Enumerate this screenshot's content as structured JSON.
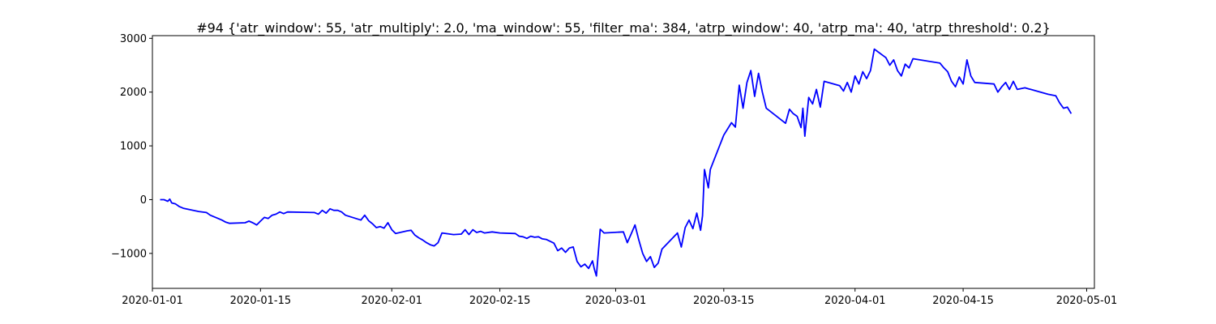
{
  "chart_data": {
    "type": "line",
    "title": "#94 {'atr_window': 55, 'atr_multiply': 2.0, 'ma_window': 55, 'filter_ma': 384, 'atrp_window': 40, 'atrp_ma': 40, 'atrp_threshold': 0.2}",
    "xlabel": "",
    "ylabel": "",
    "x_type": "date",
    "xlim": [
      "2020-01-01",
      "2020-05-02"
    ],
    "ylim": [
      -1650,
      3050
    ],
    "x_ticks": [
      "2020-01-01",
      "2020-01-15",
      "2020-02-01",
      "2020-02-15",
      "2020-03-01",
      "2020-03-15",
      "2020-04-01",
      "2020-04-15",
      "2020-05-01"
    ],
    "y_ticks": [
      -1000,
      0,
      1000,
      2000,
      3000
    ],
    "y_tick_labels": [
      "−1000",
      "0",
      "1000",
      "2000",
      "3000"
    ],
    "grid": false,
    "legend": "none",
    "series": [
      {
        "color": "#0000ff",
        "points": [
          [
            "2020-01-02",
            0
          ],
          [
            "2020-01-02 12:00",
            0
          ],
          [
            "2020-01-03",
            -30
          ],
          [
            "2020-01-03 06:00",
            10
          ],
          [
            "2020-01-03 12:00",
            -60
          ],
          [
            "2020-01-04",
            -80
          ],
          [
            "2020-01-04 12:00",
            -130
          ],
          [
            "2020-01-05",
            -160
          ],
          [
            "2020-01-07",
            -220
          ],
          [
            "2020-01-08",
            -240
          ],
          [
            "2020-01-08 12:00",
            -290
          ],
          [
            "2020-01-09",
            -320
          ],
          [
            "2020-01-09 12:00",
            -350
          ],
          [
            "2020-01-10",
            -380
          ],
          [
            "2020-01-10 12:00",
            -420
          ],
          [
            "2020-01-11",
            -440
          ],
          [
            "2020-01-13",
            -430
          ],
          [
            "2020-01-13 12:00",
            -400
          ],
          [
            "2020-01-14",
            -430
          ],
          [
            "2020-01-14 12:00",
            -470
          ],
          [
            "2020-01-15",
            -400
          ],
          [
            "2020-01-15 12:00",
            -330
          ],
          [
            "2020-01-16",
            -350
          ],
          [
            "2020-01-16 12:00",
            -290
          ],
          [
            "2020-01-17",
            -270
          ],
          [
            "2020-01-17 12:00",
            -230
          ],
          [
            "2020-01-18",
            -260
          ],
          [
            "2020-01-18 12:00",
            -230
          ],
          [
            "2020-01-22",
            -240
          ],
          [
            "2020-01-22 12:00",
            -270
          ],
          [
            "2020-01-23",
            -200
          ],
          [
            "2020-01-23 12:00",
            -250
          ],
          [
            "2020-01-24",
            -170
          ],
          [
            "2020-01-24 12:00",
            -200
          ],
          [
            "2020-01-25",
            -200
          ],
          [
            "2020-01-25 12:00",
            -230
          ],
          [
            "2020-01-26",
            -290
          ],
          [
            "2020-01-28",
            -380
          ],
          [
            "2020-01-28 12:00",
            -290
          ],
          [
            "2020-01-29",
            -390
          ],
          [
            "2020-01-29 12:00",
            -450
          ],
          [
            "2020-01-30",
            -520
          ],
          [
            "2020-01-30 12:00",
            -500
          ],
          [
            "2020-01-31",
            -530
          ],
          [
            "2020-01-31 12:00",
            -430
          ],
          [
            "2020-02-01",
            -560
          ],
          [
            "2020-02-01 12:00",
            -630
          ],
          [
            "2020-02-03",
            -580
          ],
          [
            "2020-02-03 12:00",
            -570
          ],
          [
            "2020-02-04",
            -660
          ],
          [
            "2020-02-04 12:00",
            -710
          ],
          [
            "2020-02-05",
            -750
          ],
          [
            "2020-02-05 12:00",
            -800
          ],
          [
            "2020-02-06",
            -840
          ],
          [
            "2020-02-06 12:00",
            -860
          ],
          [
            "2020-02-07",
            -800
          ],
          [
            "2020-02-07 12:00",
            -620
          ],
          [
            "2020-02-09",
            -650
          ],
          [
            "2020-02-10",
            -640
          ],
          [
            "2020-02-10 12:00",
            -560
          ],
          [
            "2020-02-11",
            -650
          ],
          [
            "2020-02-11 12:00",
            -560
          ],
          [
            "2020-02-12",
            -610
          ],
          [
            "2020-02-12 12:00",
            -590
          ],
          [
            "2020-02-13",
            -620
          ],
          [
            "2020-02-14",
            -600
          ],
          [
            "2020-02-15",
            -620
          ],
          [
            "2020-02-17",
            -630
          ],
          [
            "2020-02-17 12:00",
            -680
          ],
          [
            "2020-02-18",
            -690
          ],
          [
            "2020-02-18 12:00",
            -720
          ],
          [
            "2020-02-19",
            -680
          ],
          [
            "2020-02-19 12:00",
            -700
          ],
          [
            "2020-02-20",
            -690
          ],
          [
            "2020-02-20 12:00",
            -730
          ],
          [
            "2020-02-21",
            -740
          ],
          [
            "2020-02-22",
            -810
          ],
          [
            "2020-02-22 12:00",
            -950
          ],
          [
            "2020-02-23",
            -900
          ],
          [
            "2020-02-23 12:00",
            -980
          ],
          [
            "2020-02-24",
            -900
          ],
          [
            "2020-02-24 12:00",
            -880
          ],
          [
            "2020-02-25",
            -1150
          ],
          [
            "2020-02-25 12:00",
            -1250
          ],
          [
            "2020-02-26",
            -1200
          ],
          [
            "2020-02-26 12:00",
            -1280
          ],
          [
            "2020-02-27",
            -1140
          ],
          [
            "2020-02-27 06:00",
            -1300
          ],
          [
            "2020-02-27 12:00",
            -1420
          ],
          [
            "2020-02-28",
            -550
          ],
          [
            "2020-02-28 12:00",
            -620
          ],
          [
            "2020-03-02",
            -600
          ],
          [
            "2020-03-02 12:00",
            -800
          ],
          [
            "2020-03-03",
            -640
          ],
          [
            "2020-03-03 12:00",
            -470
          ],
          [
            "2020-03-04",
            -750
          ],
          [
            "2020-03-04 12:00",
            -1000
          ],
          [
            "2020-03-05",
            -1150
          ],
          [
            "2020-03-05 12:00",
            -1060
          ],
          [
            "2020-03-06",
            -1260
          ],
          [
            "2020-03-06 12:00",
            -1180
          ],
          [
            "2020-03-07",
            -920
          ],
          [
            "2020-03-09",
            -620
          ],
          [
            "2020-03-09 12:00",
            -880
          ],
          [
            "2020-03-10",
            -520
          ],
          [
            "2020-03-10 12:00",
            -380
          ],
          [
            "2020-03-11",
            -540
          ],
          [
            "2020-03-11 12:00",
            -250
          ],
          [
            "2020-03-12",
            -570
          ],
          [
            "2020-03-12 06:00",
            -300
          ],
          [
            "2020-03-12 12:00",
            560
          ],
          [
            "2020-03-13",
            220
          ],
          [
            "2020-03-13 06:00",
            560
          ],
          [
            "2020-03-13 12:00",
            650
          ],
          [
            "2020-03-15",
            1200
          ],
          [
            "2020-03-16",
            1430
          ],
          [
            "2020-03-16 12:00",
            1350
          ],
          [
            "2020-03-17",
            2130
          ],
          [
            "2020-03-17 12:00",
            1700
          ],
          [
            "2020-03-18",
            2180
          ],
          [
            "2020-03-18 12:00",
            2400
          ],
          [
            "2020-03-19",
            1920
          ],
          [
            "2020-03-19 12:00",
            2350
          ],
          [
            "2020-03-20",
            2000
          ],
          [
            "2020-03-20 12:00",
            1700
          ],
          [
            "2020-03-23",
            1420
          ],
          [
            "2020-03-23 12:00",
            1680
          ],
          [
            "2020-03-24",
            1600
          ],
          [
            "2020-03-24 12:00",
            1550
          ],
          [
            "2020-03-25",
            1340
          ],
          [
            "2020-03-25 06:00",
            1700
          ],
          [
            "2020-03-25 12:00",
            1180
          ],
          [
            "2020-03-26",
            1900
          ],
          [
            "2020-03-26 12:00",
            1780
          ],
          [
            "2020-03-27",
            2050
          ],
          [
            "2020-03-27 12:00",
            1720
          ],
          [
            "2020-03-28",
            2200
          ],
          [
            "2020-03-30",
            2120
          ],
          [
            "2020-03-30 12:00",
            2020
          ],
          [
            "2020-03-31",
            2180
          ],
          [
            "2020-03-31 12:00",
            2000
          ],
          [
            "2020-04-01",
            2300
          ],
          [
            "2020-04-01 12:00",
            2150
          ],
          [
            "2020-04-02",
            2380
          ],
          [
            "2020-04-02 12:00",
            2250
          ],
          [
            "2020-04-03",
            2400
          ],
          [
            "2020-04-03 12:00",
            2800
          ],
          [
            "2020-04-05",
            2640
          ],
          [
            "2020-04-05 12:00",
            2500
          ],
          [
            "2020-04-06",
            2600
          ],
          [
            "2020-04-06 12:00",
            2400
          ],
          [
            "2020-04-07",
            2300
          ],
          [
            "2020-04-07 12:00",
            2520
          ],
          [
            "2020-04-08",
            2450
          ],
          [
            "2020-04-08 12:00",
            2620
          ],
          [
            "2020-04-12",
            2540
          ],
          [
            "2020-04-12 12:00",
            2450
          ],
          [
            "2020-04-13",
            2380
          ],
          [
            "2020-04-13 12:00",
            2200
          ],
          [
            "2020-04-14",
            2100
          ],
          [
            "2020-04-14 12:00",
            2280
          ],
          [
            "2020-04-15",
            2150
          ],
          [
            "2020-04-15 12:00",
            2600
          ],
          [
            "2020-04-16",
            2300
          ],
          [
            "2020-04-16 12:00",
            2180
          ],
          [
            "2020-04-19",
            2150
          ],
          [
            "2020-04-19 12:00",
            2000
          ],
          [
            "2020-04-20",
            2100
          ],
          [
            "2020-04-20 12:00",
            2180
          ],
          [
            "2020-04-21",
            2050
          ],
          [
            "2020-04-21 12:00",
            2200
          ],
          [
            "2020-04-22",
            2050
          ],
          [
            "2020-04-23",
            2080
          ],
          [
            "2020-04-26",
            1960
          ],
          [
            "2020-04-27",
            1930
          ],
          [
            "2020-04-27 12:00",
            1800
          ],
          [
            "2020-04-28",
            1700
          ],
          [
            "2020-04-28 12:00",
            1720
          ],
          [
            "2020-04-29",
            1600
          ]
        ]
      }
    ]
  }
}
